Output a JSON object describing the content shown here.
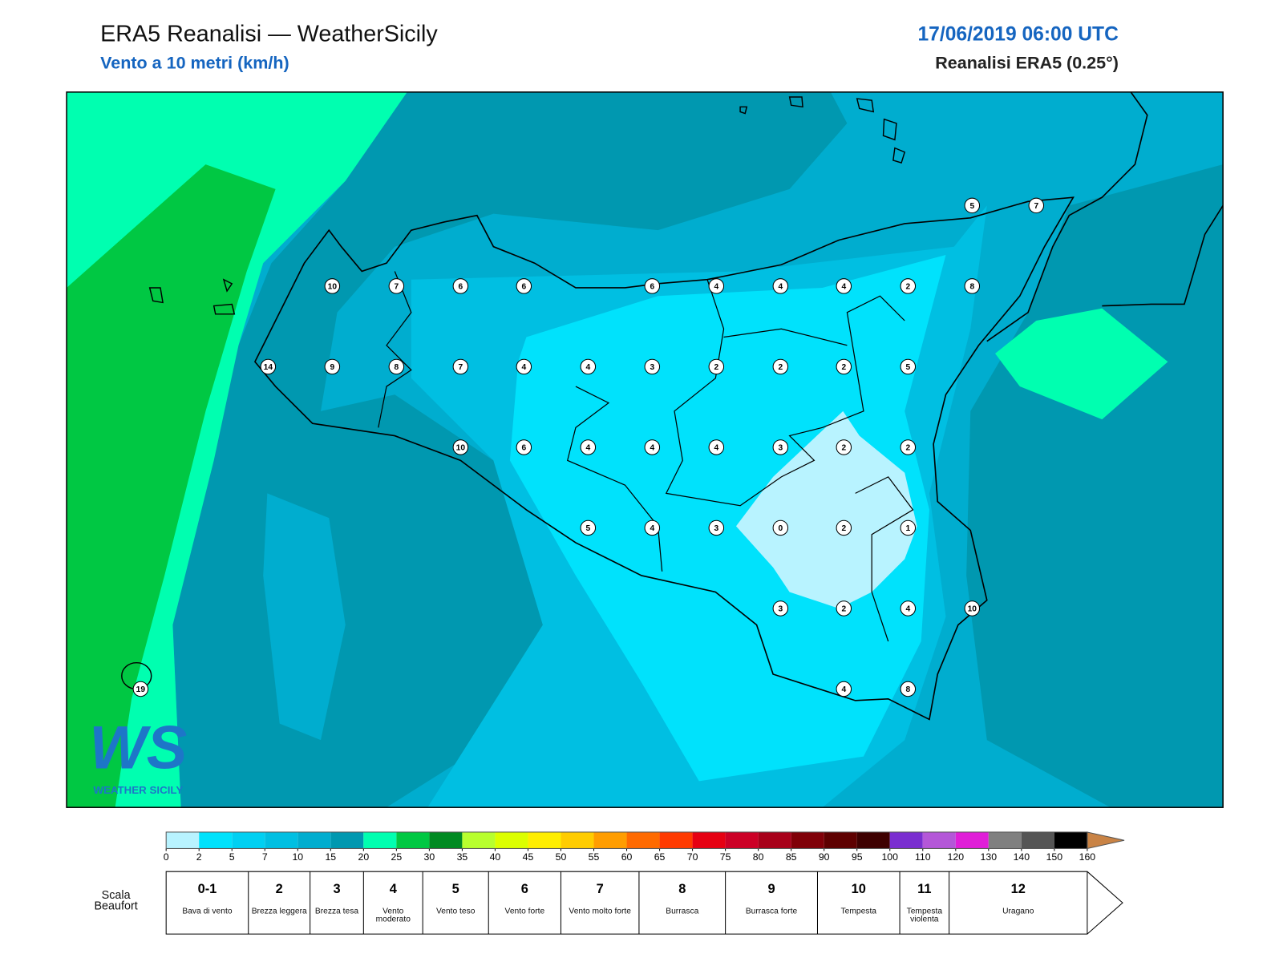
{
  "header": {
    "title": "ERA5 Reanalisi — WeatherSicily",
    "subtitle": "Vento a 10 metri (km/h)",
    "date": "17/06/2019 06:00 UTC",
    "source": "Reanalisi ERA5 (0.25°)"
  },
  "logo": {
    "mark": "WS",
    "name": "WEATHER SICILY"
  },
  "stations": {
    "values": [
      5,
      7,
      10,
      7,
      6,
      6,
      6,
      4,
      4,
      4,
      2,
      8,
      14,
      9,
      8,
      7,
      4,
      4,
      3,
      2,
      2,
      2,
      5,
      10,
      6,
      4,
      4,
      4,
      3,
      2,
      2,
      5,
      4,
      3,
      0,
      2,
      1,
      3,
      2,
      4,
      10,
      4,
      8,
      19
    ]
  },
  "colorbar": {
    "ticks": [
      0,
      2,
      5,
      7,
      10,
      15,
      20,
      25,
      30,
      35,
      40,
      45,
      50,
      55,
      60,
      65,
      70,
      75,
      80,
      85,
      90,
      95,
      100,
      110,
      120,
      130,
      140,
      150,
      160
    ],
    "colors": [
      "#b8f3ff",
      "#00e2fc",
      "#00d0f2",
      "#00bfe2",
      "#00adcf",
      "#0098b0",
      "#00ffb0",
      "#00c843",
      "#008a22",
      "#b8ff2e",
      "#dcff00",
      "#ffee00",
      "#ffcc00",
      "#ff9d00",
      "#ff6a00",
      "#ff3a00",
      "#e60012",
      "#cc0026",
      "#a8001a",
      "#800008",
      "#5e0000",
      "#3e0000",
      "#7a2ed0",
      "#b457d8",
      "#e01ed8",
      "#808080",
      "#555555",
      "#000000",
      "#8b4a2a",
      "#c98345"
    ]
  },
  "beaufort": {
    "title": "Scala Beaufort",
    "classes": [
      {
        "force": "0-1",
        "label": "Bava di vento"
      },
      {
        "force": "2",
        "label": "Brezza leggera"
      },
      {
        "force": "3",
        "label": "Brezza tesa"
      },
      {
        "force": "4",
        "label": "Vento moderato"
      },
      {
        "force": "5",
        "label": "Vento teso"
      },
      {
        "force": "6",
        "label": "Vento forte"
      },
      {
        "force": "7",
        "label": "Vento molto forte"
      },
      {
        "force": "8",
        "label": "Burrasca"
      },
      {
        "force": "9",
        "label": "Burrasca forte"
      },
      {
        "force": "10",
        "label": "Tempesta"
      },
      {
        "force": "11",
        "label": "Tempesta violenta"
      },
      {
        "force": "12",
        "label": "Uragano"
      }
    ]
  }
}
